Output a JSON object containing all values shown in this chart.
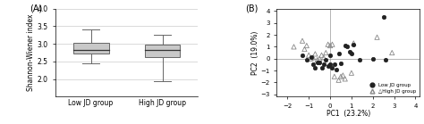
{
  "panel_A": {
    "title": "(A)",
    "ylabel": "Shannon-Wiener index",
    "xtick_labels": [
      "Low JD group",
      "High JD group"
    ],
    "ylim": [
      1.5,
      4.0
    ],
    "yticks": [
      2.0,
      2.5,
      3.0,
      3.5,
      4.0
    ],
    "yticks_grid": [
      1.5,
      2.0,
      2.5,
      3.0,
      3.5,
      4.0
    ],
    "low_jd": {
      "median": 2.82,
      "q1": 2.72,
      "q3": 3.02,
      "whisker_low": 2.45,
      "whisker_high": 3.42
    },
    "high_jd": {
      "median": 2.82,
      "q1": 2.62,
      "q3": 2.98,
      "whisker_low": 1.95,
      "whisker_high": 3.25
    },
    "box_color": "#c8c8c8",
    "box_edge_color": "#666666",
    "median_color": "#333333"
  },
  "panel_B": {
    "title": "(B)",
    "xlabel": "PC1  (23.2%)",
    "ylabel": "PC2  (19.0%)",
    "xlim": [
      -2.5,
      4.2
    ],
    "ylim": [
      -3.2,
      4.2
    ],
    "xticks": [
      -2,
      -1,
      0,
      1,
      2,
      3,
      4
    ],
    "yticks": [
      -3,
      -2,
      -1,
      0,
      1,
      2,
      3,
      4
    ],
    "low_jd_circles": [
      [
        -1.3,
        0.3
      ],
      [
        -1.1,
        -0.1
      ],
      [
        -0.9,
        0.1
      ],
      [
        -0.8,
        -0.5
      ],
      [
        -0.7,
        -0.8
      ],
      [
        -0.6,
        -0.3
      ],
      [
        -0.5,
        -0.3
      ],
      [
        -0.4,
        -0.8
      ],
      [
        -0.3,
        -0.5
      ],
      [
        -0.2,
        -0.1
      ],
      [
        -0.1,
        -0.6
      ],
      [
        0.0,
        -0.5
      ],
      [
        0.0,
        0.3
      ],
      [
        0.1,
        -0.8
      ],
      [
        0.2,
        -0.5
      ],
      [
        0.3,
        -0.9
      ],
      [
        0.4,
        0.4
      ],
      [
        0.5,
        -0.4
      ],
      [
        0.7,
        1.1
      ],
      [
        0.8,
        1.0
      ],
      [
        0.9,
        0.6
      ],
      [
        1.0,
        0.4
      ],
      [
        1.1,
        1.2
      ],
      [
        1.4,
        -0.1
      ],
      [
        2.0,
        0.0
      ],
      [
        2.5,
        3.5
      ],
      [
        2.6,
        -0.1
      ]
    ],
    "high_jd_triangles": [
      [
        -1.7,
        1.0
      ],
      [
        -1.3,
        1.5
      ],
      [
        -1.2,
        0.8
      ],
      [
        -1.1,
        1.1
      ],
      [
        -1.0,
        0.3
      ],
      [
        -0.9,
        0.0
      ],
      [
        -0.8,
        0.1
      ],
      [
        -0.7,
        0.4
      ],
      [
        -0.6,
        -0.1
      ],
      [
        -0.5,
        0.0
      ],
      [
        -0.4,
        0.3
      ],
      [
        -0.3,
        0.1
      ],
      [
        -0.2,
        0.5
      ],
      [
        -0.1,
        1.2
      ],
      [
        0.0,
        1.1
      ],
      [
        0.1,
        1.2
      ],
      [
        0.2,
        -1.5
      ],
      [
        0.4,
        -1.8
      ],
      [
        0.5,
        -1.5
      ],
      [
        0.6,
        -1.4
      ],
      [
        0.7,
        -1.7
      ],
      [
        1.0,
        -1.2
      ],
      [
        1.1,
        1.3
      ],
      [
        2.2,
        1.8
      ],
      [
        2.9,
        0.5
      ]
    ],
    "circle_color": "#222222",
    "triangle_edge_color": "#888888",
    "legend_circle_label": "Low JD group",
    "legend_triangle_label": "△High JD group"
  }
}
